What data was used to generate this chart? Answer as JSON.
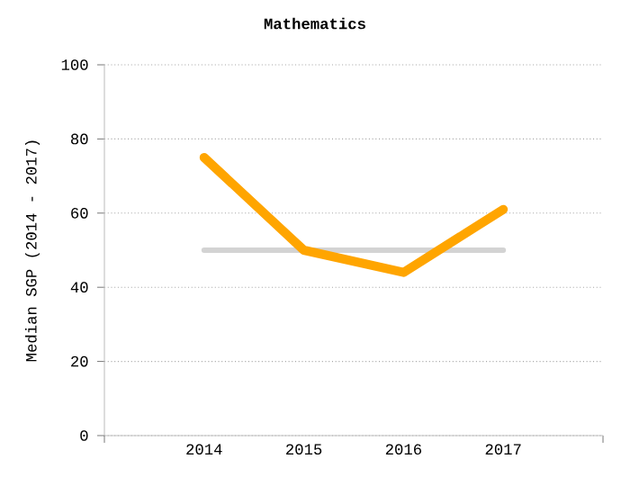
{
  "chart_data": {
    "type": "line",
    "title": "Mathematics",
    "ylabel": "Median SGP (2014 - 2017)",
    "categories": [
      "2014",
      "2015",
      "2016",
      "2017"
    ],
    "series": [
      {
        "color": "#d3d3d3",
        "values": [
          50,
          50,
          50,
          50
        ]
      },
      {
        "color": "#ffa500",
        "values": [
          75,
          50,
          44,
          61
        ]
      }
    ],
    "ylim": [
      0,
      100
    ],
    "yticks": [
      0,
      20,
      40,
      60,
      80,
      100
    ],
    "grid": "y"
  }
}
